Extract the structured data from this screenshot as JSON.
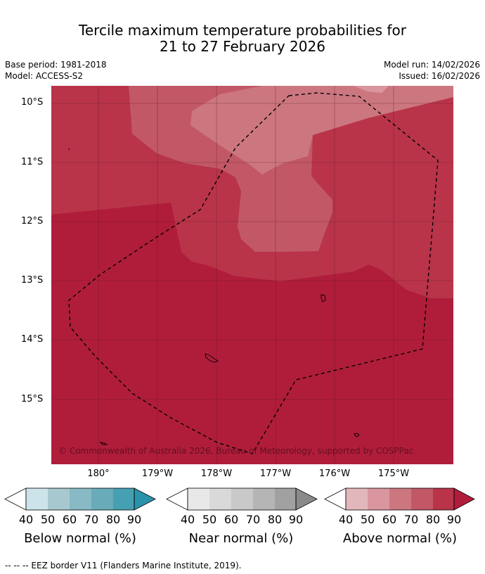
{
  "title_line1": "Tercile maximum temperature probabilities for",
  "title_line2": "21 to 27 February 2026",
  "base_period": "Base period: 1981-2018",
  "model": "Model: ACCESS-S2",
  "model_run": "Model run: 14/02/2026",
  "issued": "Issued: 16/02/2026",
  "copyright": "© Commonwealth of Australia 2026, Bureau of Meteorology, supported by COSPPac",
  "lat_labels": [
    "10°S",
    "11°S",
    "12°S",
    "13°S",
    "14°S",
    "15°S"
  ],
  "lon_labels": [
    "180°",
    "179°W",
    "178°W",
    "177°W",
    "176°W",
    "175°W"
  ],
  "colorbars": [
    {
      "label": "Below normal (%)",
      "ticks": [
        "40",
        "50",
        "60",
        "70",
        "80",
        "90"
      ],
      "colors": [
        "#cde3ea",
        "#a8c8d0",
        "#88b9c5",
        "#6aabb9",
        "#45a0b1",
        "#2a93ab"
      ]
    },
    {
      "label": "Near normal (%)",
      "ticks": [
        "40",
        "50",
        "60",
        "70",
        "80",
        "90"
      ],
      "colors": [
        "#e8e8e8",
        "#d9d9d9",
        "#c9c9c9",
        "#b5b5b5",
        "#a1a1a1",
        "#8a8a8a"
      ]
    },
    {
      "label": "Above normal (%)",
      "ticks": [
        "40",
        "50",
        "60",
        "70",
        "80",
        "90"
      ],
      "colors": [
        "#e2b7bc",
        "#d9969f",
        "#cc7780",
        "#c25866",
        "#b93449",
        "#b01d3b"
      ]
    }
  ],
  "footer": "--  --  -- EEZ border V11 (Flanders Marine Institute, 2019)."
}
